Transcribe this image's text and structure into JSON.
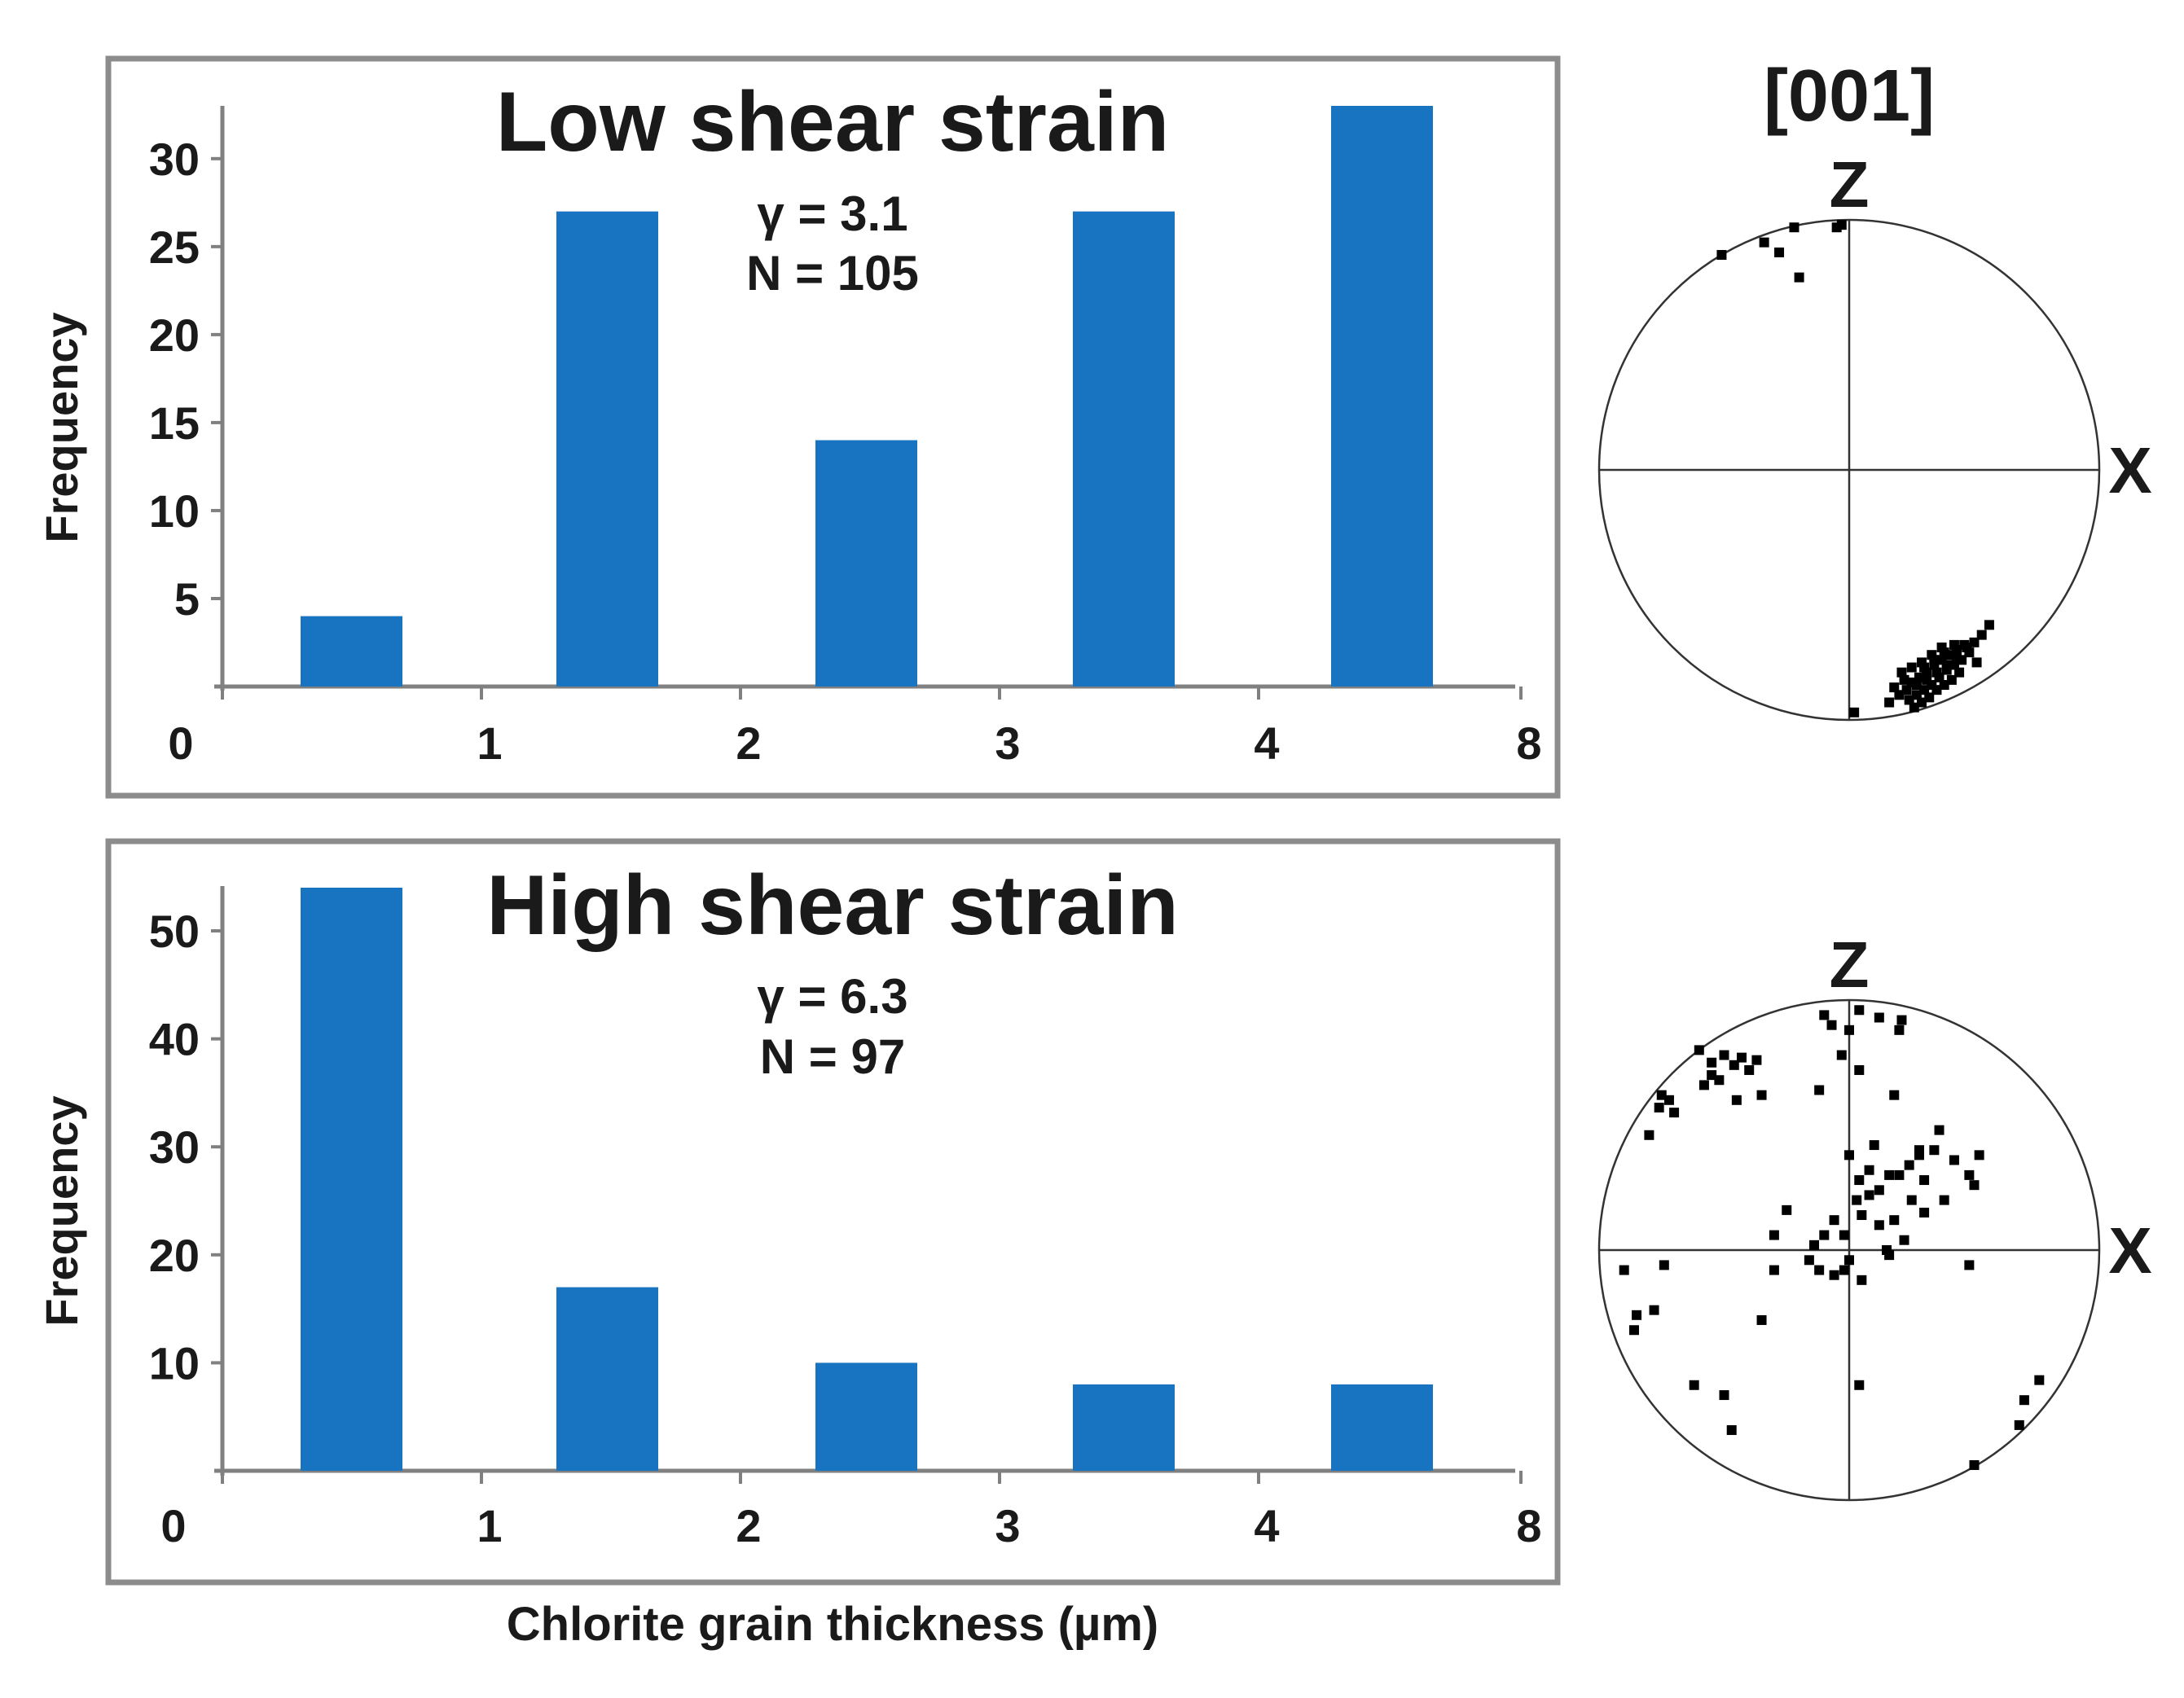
{
  "chart_data": [
    {
      "type": "bar",
      "title": "Low shear strain",
      "title_color": "#ff1a1a",
      "annotations": [
        "γ = 3.1",
        "N = 105"
      ],
      "ylabel": "Frequency",
      "xlabel": "",
      "x_tick_labels": [
        "0",
        "1",
        "2",
        "3",
        "4",
        "8"
      ],
      "categories": [
        "0-1",
        "1-2",
        "2-3",
        "3-4",
        "4-8"
      ],
      "values": [
        4,
        27,
        14,
        27,
        33
      ],
      "y_ticks": [
        5,
        10,
        15,
        20,
        25,
        30
      ],
      "ylim": [
        0,
        33
      ],
      "bar_color": "#1874c1"
    },
    {
      "type": "bar",
      "title": "High shear strain",
      "title_color": "#2e2e8e",
      "annotations": [
        "γ = 6.3",
        "N = 97"
      ],
      "ylabel": "Frequency",
      "xlabel": "Chlorite grain thickness (µm)",
      "x_tick_labels": [
        "0",
        "1",
        "2",
        "3",
        "4",
        "8"
      ],
      "categories": [
        "0-1",
        "1-2",
        "2-3",
        "3-4",
        "4-8"
      ],
      "values": [
        54,
        17,
        10,
        8,
        8
      ],
      "y_ticks": [
        10,
        20,
        30,
        40,
        50
      ],
      "ylim": [
        0,
        54
      ],
      "bar_color": "#1874c1"
    },
    {
      "type": "scatter",
      "title": "[001]",
      "axis_labels": [
        "Z",
        "X"
      ],
      "note": "equal-area pole figure, low shear strain; coordinates relative to unit circle",
      "points": [
        [
          -0.51,
          0.86
        ],
        [
          -0.34,
          0.91
        ],
        [
          -0.22,
          0.97
        ],
        [
          -0.28,
          0.87
        ],
        [
          -0.2,
          0.77
        ],
        [
          -0.05,
          0.97
        ],
        [
          -0.03,
          0.98
        ],
        [
          0.18,
          -0.87
        ],
        [
          0.22,
          -0.84
        ],
        [
          0.25,
          -0.85
        ],
        [
          0.28,
          -0.83
        ],
        [
          0.31,
          -0.81
        ],
        [
          0.34,
          -0.78
        ],
        [
          0.37,
          -0.76
        ],
        [
          0.4,
          -0.74
        ],
        [
          0.43,
          -0.72
        ],
        [
          0.46,
          -0.7
        ],
        [
          0.5,
          -0.69
        ],
        [
          0.53,
          -0.66
        ],
        [
          0.56,
          -0.62
        ],
        [
          0.2,
          -0.9
        ],
        [
          0.24,
          -0.92
        ],
        [
          0.27,
          -0.9
        ],
        [
          0.3,
          -0.88
        ],
        [
          0.33,
          -0.86
        ],
        [
          0.36,
          -0.83
        ],
        [
          0.39,
          -0.8
        ],
        [
          0.42,
          -0.78
        ],
        [
          0.45,
          -0.76
        ],
        [
          0.48,
          -0.73
        ],
        [
          0.26,
          -0.95
        ],
        [
          0.29,
          -0.93
        ],
        [
          0.32,
          -0.91
        ],
        [
          0.35,
          -0.88
        ],
        [
          0.38,
          -0.86
        ],
        [
          0.41,
          -0.84
        ],
        [
          0.44,
          -0.81
        ],
        [
          0.23,
          -0.88
        ],
        [
          0.27,
          -0.86
        ],
        [
          0.31,
          -0.84
        ],
        [
          0.35,
          -0.81
        ],
        [
          0.39,
          -0.78
        ],
        [
          0.43,
          -0.75
        ],
        [
          0.47,
          -0.71
        ],
        [
          0.3,
          -0.79
        ],
        [
          0.34,
          -0.76
        ],
        [
          0.38,
          -0.73
        ],
        [
          0.42,
          -0.7
        ],
        [
          0.16,
          -0.93
        ],
        [
          0.02,
          -0.97
        ],
        [
          0.51,
          -0.77
        ],
        [
          0.21,
          -0.81
        ],
        [
          0.25,
          -0.79
        ],
        [
          0.29,
          -0.77
        ],
        [
          0.33,
          -0.74
        ],
        [
          0.37,
          -0.71
        ]
      ]
    },
    {
      "type": "scatter",
      "title": "",
      "axis_labels": [
        "Z",
        "X"
      ],
      "note": "equal-area pole figure, high shear strain; coordinates relative to unit circle",
      "points": [
        [
          -0.6,
          0.8
        ],
        [
          -0.55,
          0.75
        ],
        [
          -0.5,
          0.78
        ],
        [
          -0.46,
          0.74
        ],
        [
          -0.43,
          0.77
        ],
        [
          -0.4,
          0.72
        ],
        [
          -0.37,
          0.76
        ],
        [
          -0.55,
          0.7
        ],
        [
          -0.58,
          0.66
        ],
        [
          -0.52,
          0.68
        ],
        [
          -0.75,
          0.62
        ],
        [
          -0.72,
          0.6
        ],
        [
          -0.76,
          0.57
        ],
        [
          -0.7,
          0.55
        ],
        [
          -0.8,
          0.46
        ],
        [
          -0.45,
          0.6
        ],
        [
          -0.35,
          0.62
        ],
        [
          -0.1,
          0.94
        ],
        [
          -0.07,
          0.9
        ],
        [
          0.0,
          0.88
        ],
        [
          0.04,
          0.96
        ],
        [
          0.12,
          0.93
        ],
        [
          0.2,
          0.88
        ],
        [
          0.21,
          0.92
        ],
        [
          0.18,
          0.62
        ],
        [
          0.04,
          0.72
        ],
        [
          -0.03,
          0.78
        ],
        [
          -0.12,
          0.64
        ],
        [
          0.0,
          0.38
        ],
        [
          0.04,
          0.28
        ],
        [
          0.08,
          0.32
        ],
        [
          0.12,
          0.24
        ],
        [
          0.16,
          0.3
        ],
        [
          0.2,
          0.3
        ],
        [
          0.24,
          0.34
        ],
        [
          0.28,
          0.38
        ],
        [
          0.3,
          0.28
        ],
        [
          0.34,
          0.4
        ],
        [
          0.38,
          0.2
        ],
        [
          0.42,
          0.36
        ],
        [
          0.48,
          0.3
        ],
        [
          0.5,
          0.26
        ],
        [
          0.52,
          0.38
        ],
        [
          0.36,
          0.48
        ],
        [
          0.28,
          0.4
        ],
        [
          0.03,
          0.2
        ],
        [
          0.05,
          0.14
        ],
        [
          0.08,
          0.22
        ],
        [
          0.12,
          0.1
        ],
        [
          0.15,
          0.0
        ],
        [
          0.18,
          0.12
        ],
        [
          0.22,
          0.04
        ],
        [
          -0.06,
          0.12
        ],
        [
          -0.1,
          0.06
        ],
        [
          -0.14,
          0.02
        ],
        [
          -0.16,
          -0.04
        ],
        [
          -0.02,
          0.06
        ],
        [
          0.0,
          -0.04
        ],
        [
          0.05,
          -0.12
        ],
        [
          0.16,
          -0.02
        ],
        [
          -0.02,
          -0.08
        ],
        [
          -0.06,
          -0.1
        ],
        [
          -0.12,
          -0.08
        ],
        [
          -0.25,
          0.16
        ],
        [
          -0.3,
          0.06
        ],
        [
          -0.3,
          -0.08
        ],
        [
          -0.9,
          -0.08
        ],
        [
          -0.74,
          -0.06
        ],
        [
          -0.78,
          -0.24
        ],
        [
          -0.85,
          -0.26
        ],
        [
          -0.86,
          -0.32
        ],
        [
          -0.35,
          -0.28
        ],
        [
          -0.62,
          -0.54
        ],
        [
          -0.5,
          -0.58
        ],
        [
          -0.47,
          -0.72
        ],
        [
          0.04,
          -0.54
        ],
        [
          0.48,
          -0.06
        ],
        [
          0.7,
          -0.6
        ],
        [
          0.76,
          -0.52
        ],
        [
          0.68,
          -0.7
        ],
        [
          0.5,
          -0.86
        ],
        [
          0.25,
          0.2
        ],
        [
          0.3,
          0.15
        ],
        [
          0.1,
          0.42
        ]
      ]
    }
  ]
}
